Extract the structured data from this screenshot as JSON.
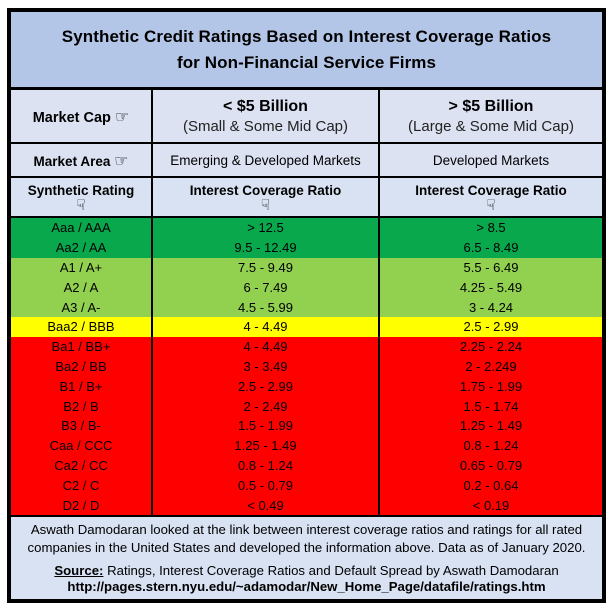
{
  "colors": {
    "title_bg": "#B4C6E7",
    "header_bg": "#DCE2F2",
    "subheader_bg": "#D9E2F3",
    "footer_bg": "#D9E2F3",
    "green_dark": "#09A84D",
    "green_light": "#92D050",
    "yellow": "#FFFF00",
    "red": "#FF0000",
    "border": "#000000"
  },
  "title": {
    "line1": "Synthetic Credit Ratings Based on Interest Coverage Ratios",
    "line2": "for Non-Financial Service Firms"
  },
  "header": {
    "market_cap_label": "Market Cap",
    "market_area_label": "Market Area",
    "right_hand_icon": "☞",
    "down_hand_icon": "☟",
    "small_cap_title": "< $5 Billion",
    "small_cap_sub": "(Small & Some Mid Cap)",
    "large_cap_title": "> $5 Billion",
    "large_cap_sub": "(Large & Some Mid Cap)",
    "small_cap_area": "Emerging & Developed Markets",
    "large_cap_area": "Developed Markets",
    "rating_col_label": "Synthetic Rating",
    "icr_col_label": "Interest Coverage Ratio"
  },
  "ratings": {
    "rows": [
      {
        "rating": "Aaa / AAA",
        "small": "> 12.5",
        "large": "> 8.5",
        "color": "green_dark"
      },
      {
        "rating": "Aa2 / AA",
        "small": "9.5 - 12.49",
        "large": "6.5 - 8.49",
        "color": "green_dark"
      },
      {
        "rating": "A1 / A+",
        "small": "7.5 - 9.49",
        "large": "5.5 - 6.49",
        "color": "green_light"
      },
      {
        "rating": "A2 / A",
        "small": "6 - 7.49",
        "large": "4.25 - 5.49",
        "color": "green_light"
      },
      {
        "rating": "A3 / A-",
        "small": "4.5 - 5.99",
        "large": "3 - 4.24",
        "color": "green_light"
      },
      {
        "rating": "Baa2 / BBB",
        "small": "4 - 4.49",
        "large": "2.5 - 2.99",
        "color": "yellow"
      },
      {
        "rating": "Ba1 / BB+",
        "small": "4 - 4.49",
        "large": "2.25 - 2.24",
        "color": "red"
      },
      {
        "rating": "Ba2 / BB",
        "small": "3 - 3.49",
        "large": "2 - 2.249",
        "color": "red"
      },
      {
        "rating": "B1 / B+",
        "small": "2.5 - 2.99",
        "large": "1.75 - 1.99",
        "color": "red"
      },
      {
        "rating": "B2 / B",
        "small": "2 - 2.49",
        "large": "1.5 - 1.74",
        "color": "red"
      },
      {
        "rating": "B3 / B-",
        "small": "1.5 - 1.99",
        "large": "1.25 - 1.49",
        "color": "red"
      },
      {
        "rating": "Caa / CCC",
        "small": "1.25 - 1.49",
        "large": "0.8 - 1.24",
        "color": "red"
      },
      {
        "rating": "Ca2 / CC",
        "small": "0.8 - 1.24",
        "large": "0.65 - 0.79",
        "color": "red"
      },
      {
        "rating": "C2 / C",
        "small": "0.5 - 0.79",
        "large": "0.2 - 0.64",
        "color": "red"
      },
      {
        "rating": "D2 / D",
        "small": "< 0.49",
        "large": "< 0.19",
        "color": "red"
      }
    ]
  },
  "footer": {
    "line1": "Aswath Damodaran looked at the link between interest coverage ratios and ratings for all rated",
    "line2": "companies in the United States and developed the information above. Data as of January 2020.",
    "source_label": "Source:",
    "source_text": " Ratings, Interest Coverage Ratios and Default Spread by Aswath Damodaran",
    "url": "http://pages.stern.nyu.edu/~adamodar/New_Home_Page/datafile/ratings.htm"
  },
  "chart_data": {
    "type": "table",
    "title": "Synthetic Credit Ratings Based on Interest Coverage Ratios for Non-Financial Service Firms",
    "columns": [
      "Synthetic Rating",
      "Interest Coverage Ratio — < $5 Billion (Small & Some Mid Cap), Emerging & Developed Markets",
      "Interest Coverage Ratio — > $5 Billion (Large & Some Mid Cap), Developed Markets"
    ],
    "rows": [
      [
        "Aaa / AAA",
        "> 12.5",
        "> 8.5"
      ],
      [
        "Aa2 / AA",
        "9.5 - 12.49",
        "6.5 - 8.49"
      ],
      [
        "A1 / A+",
        "7.5 - 9.49",
        "5.5 - 6.49"
      ],
      [
        "A2 / A",
        "6 - 7.49",
        "4.25 - 5.49"
      ],
      [
        "A3 / A-",
        "4.5 - 5.99",
        "3 - 4.24"
      ],
      [
        "Baa2 / BBB",
        "4 - 4.49",
        "2.5 - 2.99"
      ],
      [
        "Ba1 / BB+",
        "4 - 4.49",
        "2.25 - 2.24"
      ],
      [
        "Ba2 / BB",
        "3 - 3.49",
        "2 - 2.249"
      ],
      [
        "B1 / B+",
        "2.5 - 2.99",
        "1.75 - 1.99"
      ],
      [
        "B2 / B",
        "2 - 2.49",
        "1.5 - 1.74"
      ],
      [
        "B3 / B-",
        "1.5 - 1.99",
        "1.25 - 1.49"
      ],
      [
        "Caa / CCC",
        "1.25 - 1.49",
        "0.8 - 1.24"
      ],
      [
        "Ca2 / CC",
        "0.8 - 1.24",
        "0.65 - 0.79"
      ],
      [
        "C2 / C",
        "0.5 - 0.79",
        "0.2 - 0.64"
      ],
      [
        "D2 / D",
        "< 0.49",
        "< 0.19"
      ]
    ],
    "row_color_groups": {
      "green_dark": [
        "Aaa / AAA",
        "Aa2 / AA"
      ],
      "green_light": [
        "A1 / A+",
        "A2 / A",
        "A3 / A-"
      ],
      "yellow": [
        "Baa2 / BBB"
      ],
      "red": [
        "Ba1 / BB+",
        "Ba2 / BB",
        "B1 / B+",
        "B2 / B",
        "B3 / B-",
        "Caa / CCC",
        "Ca2 / CC",
        "C2 / C",
        "D2 / D"
      ]
    }
  }
}
